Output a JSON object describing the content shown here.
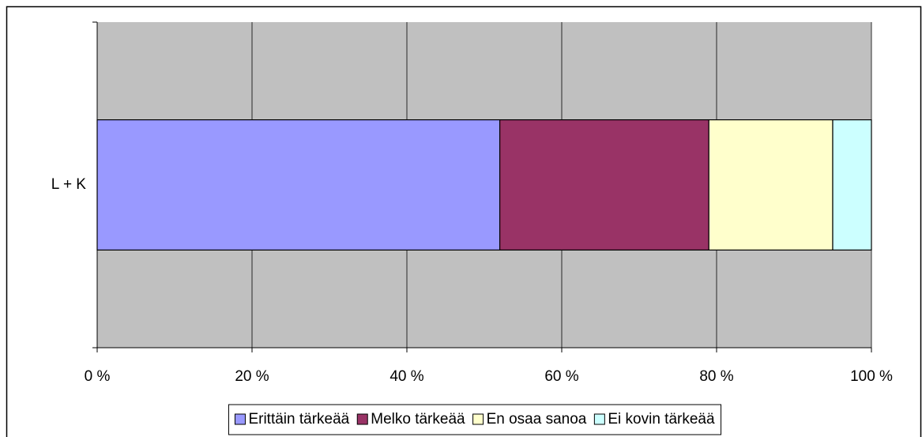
{
  "chart_data": {
    "type": "stacked-bar-horizontal",
    "categories": [
      "L + K"
    ],
    "series": [
      {
        "name": "Erittäin tärkeää",
        "color": "#9999ff",
        "values": [
          52
        ]
      },
      {
        "name": "Melko tärkeää",
        "color": "#993366",
        "values": [
          27
        ]
      },
      {
        "name": "En osaa sanoa",
        "color": "#ffffcc",
        "values": [
          16
        ]
      },
      {
        "name": "Ei kovin tärkeää",
        "color": "#ccffff",
        "values": [
          5
        ]
      }
    ],
    "xlim": [
      0,
      100
    ],
    "xticks": [
      {
        "value": 0,
        "label": "0 %"
      },
      {
        "value": 20,
        "label": "20 %"
      },
      {
        "value": 40,
        "label": "40 %"
      },
      {
        "value": 60,
        "label": "60 %"
      },
      {
        "value": 80,
        "label": "80 %"
      },
      {
        "value": 100,
        "label": "100 %"
      }
    ],
    "grid": true,
    "legend": "bottom"
  }
}
